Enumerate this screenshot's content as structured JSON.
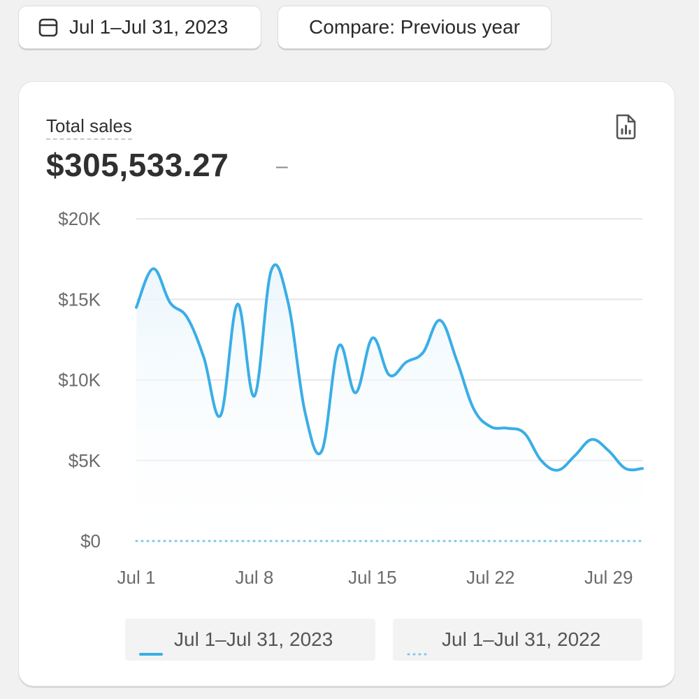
{
  "toolbar": {
    "date_range_label": "Jul 1–Jul 31, 2023",
    "compare_label": "Compare: Previous year"
  },
  "card": {
    "metric_label": "Total sales",
    "metric_value": "$305,533.27",
    "metric_change": "–"
  },
  "colors": {
    "current_series": "#3aaee6",
    "previous_series": "#7cc7ea",
    "gridline": "#e6e6e6",
    "text_muted": "#6b6b6b"
  },
  "chart_data": {
    "type": "line",
    "title": "",
    "xlabel": "",
    "ylabel": "",
    "ylim": [
      0,
      20000
    ],
    "y_ticks": [
      {
        "value": 20000,
        "label": "$20K"
      },
      {
        "value": 15000,
        "label": "$15K"
      },
      {
        "value": 10000,
        "label": "$10K"
      },
      {
        "value": 5000,
        "label": "$5K"
      },
      {
        "value": 0,
        "label": "$0"
      }
    ],
    "x_ticks": [
      {
        "day": 1,
        "label": "Jul 1"
      },
      {
        "day": 8,
        "label": "Jul 8"
      },
      {
        "day": 15,
        "label": "Jul 15"
      },
      {
        "day": 22,
        "label": "Jul 22"
      },
      {
        "day": 29,
        "label": "Jul 29"
      }
    ],
    "grid": true,
    "legend_position": "bottom",
    "series": [
      {
        "name": "Jul 1–Jul 31, 2023",
        "style": "solid",
        "x": [
          1,
          2,
          3,
          4,
          5,
          6,
          7,
          8,
          9,
          10,
          11,
          12,
          13,
          14,
          15,
          16,
          17,
          18,
          19,
          20,
          21,
          22,
          23,
          24,
          25,
          26,
          27,
          28,
          29,
          30,
          31
        ],
        "y": [
          14500,
          16900,
          14800,
          13900,
          11400,
          7800,
          14700,
          9000,
          16800,
          14800,
          8000,
          5600,
          12100,
          9200,
          12600,
          10300,
          11100,
          11700,
          13700,
          11200,
          8200,
          7100,
          7000,
          6700,
          5000,
          4400,
          5300,
          6300,
          5600,
          4500,
          4500
        ]
      },
      {
        "name": "Jul 1–Jul 31, 2022",
        "style": "dotted",
        "x": [
          1,
          31
        ],
        "y": [
          0,
          0
        ]
      }
    ]
  }
}
